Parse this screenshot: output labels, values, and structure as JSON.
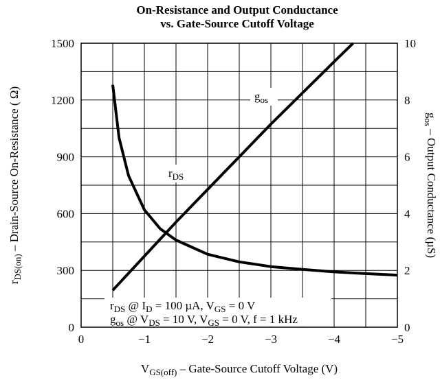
{
  "chart_data": {
    "type": "line",
    "title": [
      "On-Resistance and Output Conductance",
      "vs. Gate-Source Cutoff Voltage"
    ],
    "xlabel": [
      {
        "t": "V"
      },
      {
        "t": "GS(off)",
        "sub": true
      },
      {
        "t": " – Gate-Source Cutoff Voltage (V)"
      }
    ],
    "ylabel": [
      {
        "t": "r"
      },
      {
        "t": "DS(on)",
        "sub": true
      },
      {
        "t": " – Drain-Source On-Resistance ( Ω)"
      }
    ],
    "y2label": [
      {
        "t": "g"
      },
      {
        "t": "os",
        "sub": true
      },
      {
        "t": " – Output Conductance (µS)"
      }
    ],
    "xlim": [
      0,
      -5
    ],
    "xticks": [
      0,
      {
        "value": -1,
        "label": "−1"
      },
      {
        "value": -2,
        "label": "−2"
      },
      {
        "value": -3,
        "label": "−3"
      },
      {
        "value": -4,
        "label": "−4"
      },
      {
        "value": -5,
        "label": "−5"
      }
    ],
    "ylim": [
      0,
      1500
    ],
    "yticks": [
      0,
      300,
      600,
      900,
      1200,
      1500
    ],
    "y2lim": [
      0,
      10
    ],
    "y2ticks": [
      0,
      2,
      4,
      6,
      8,
      10
    ],
    "grid": true,
    "series": [
      {
        "name": [
          {
            "t": "r"
          },
          {
            "t": "DS",
            "sub": true
          }
        ],
        "color": "#000000",
        "x": [
          -0.5,
          -0.6,
          -0.75,
          -1,
          -1.25,
          -1.5,
          -2,
          -2.5,
          -3,
          -3.5,
          -4,
          -4.5,
          -5
        ],
        "values": [
          1280,
          1000,
          800,
          620,
          520,
          460,
          385,
          345,
          320,
          305,
          292,
          283,
          275
        ]
      },
      {
        "name": [
          {
            "t": "g"
          },
          {
            "t": "os",
            "sub": true
          }
        ],
        "color": "#000000",
        "axis": "y2",
        "x": [
          -0.5,
          -1,
          -1.5,
          -2,
          -2.5,
          -3,
          -3.5,
          -4,
          -4.3
        ],
        "values": [
          1.3,
          2.5,
          3.7,
          4.85,
          6.0,
          7.15,
          8.25,
          9.35,
          10
        ]
      }
    ],
    "annotations": [
      [
        {
          "t": "r"
        },
        {
          "t": "DS",
          "sub": true
        },
        {
          "t": " @ I"
        },
        {
          "t": "D",
          "sub": true
        },
        {
          "t": " = 100 µA, V"
        },
        {
          "t": "GS",
          "sub": true
        },
        {
          "t": " = 0 V"
        }
      ],
      [
        {
          "t": "g"
        },
        {
          "t": "os",
          "sub": true
        },
        {
          "t": " @ V"
        },
        {
          "t": "DS",
          "sub": true
        },
        {
          "t": " = 10 V, V"
        },
        {
          "t": "GS",
          "sub": true
        },
        {
          "t": " = 0 V, f = 1 kHz"
        }
      ]
    ]
  }
}
